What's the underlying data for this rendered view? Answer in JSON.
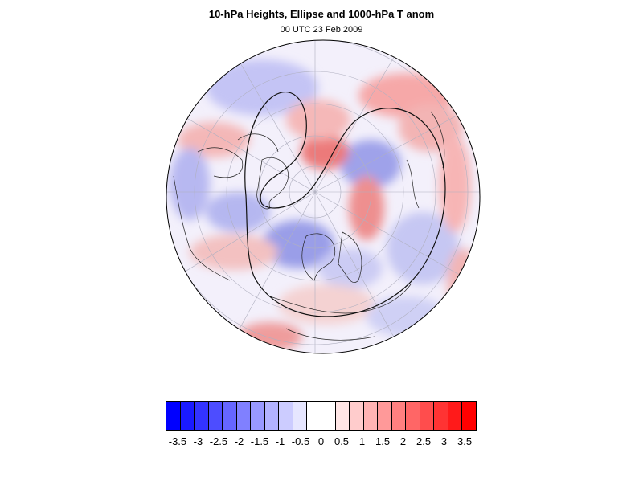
{
  "title": "10-hPa Heights, Ellipse and 1000-hPa T anom",
  "subtitle": "00 UTC 23 Feb 2009",
  "map": {
    "projection": "orthographic-polar-northern-hemisphere",
    "field": "1000-hPa temperature anomaly",
    "overlay": [
      "10-hPa height contours",
      "vortex ellipse"
    ]
  },
  "colorbar": {
    "colors": [
      "#0000ff",
      "#1a1aff",
      "#3333ff",
      "#4d4dff",
      "#6666ff",
      "#8080ff",
      "#9999ff",
      "#b3b3ff",
      "#ccccff",
      "#e6e6ff",
      "#ffffff",
      "#ffffff",
      "#ffe6e6",
      "#ffcccc",
      "#ffb3b3",
      "#ff9999",
      "#ff8080",
      "#ff6666",
      "#ff4d4d",
      "#ff3333",
      "#ff1a1a",
      "#ff0000"
    ],
    "tick_labels": [
      "-3.5",
      "-3",
      "-2.5",
      "-2",
      "-1.5",
      "-1",
      "-0.5",
      "0",
      "0.5",
      "1",
      "1.5",
      "2",
      "2.5",
      "3",
      "3.5"
    ]
  }
}
